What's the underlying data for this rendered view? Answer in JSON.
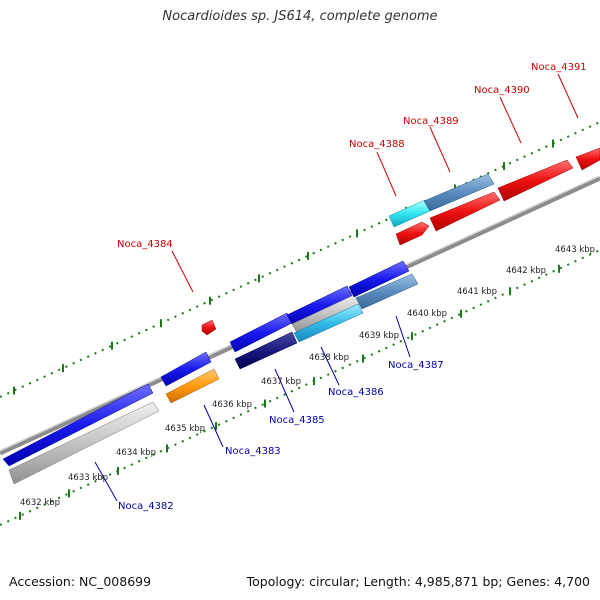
{
  "title": "Nocardioides sp. JS614, complete genome",
  "footer": {
    "accession": "Accession: NC_008699",
    "summary": "Topology: circular; Length: 4,985,871 bp; Genes: 4,700"
  },
  "colors": {
    "forward_label": "#cc0000",
    "reverse_label": "#0000aa",
    "tick": "#1a7a1a",
    "backbone": "#8c8c8c"
  },
  "axis_labels": [
    "4632 kbp",
    "4633 kbp",
    "4634 kbp",
    "4635 kbp",
    "4636 kbp",
    "4637 kbp",
    "4638 kbp",
    "4639 kbp",
    "4640 kbp",
    "4641 kbp",
    "4642 kbp",
    "4643 kbp"
  ],
  "gene_labels": {
    "forward": [
      "Noca_4384",
      "Noca_4388",
      "Noca_4389",
      "Noca_4390",
      "Noca_4391"
    ],
    "reverse": [
      "Noca_4382",
      "Noca_4383",
      "Noca_4385",
      "Noca_4386",
      "Noca_4387"
    ]
  }
}
